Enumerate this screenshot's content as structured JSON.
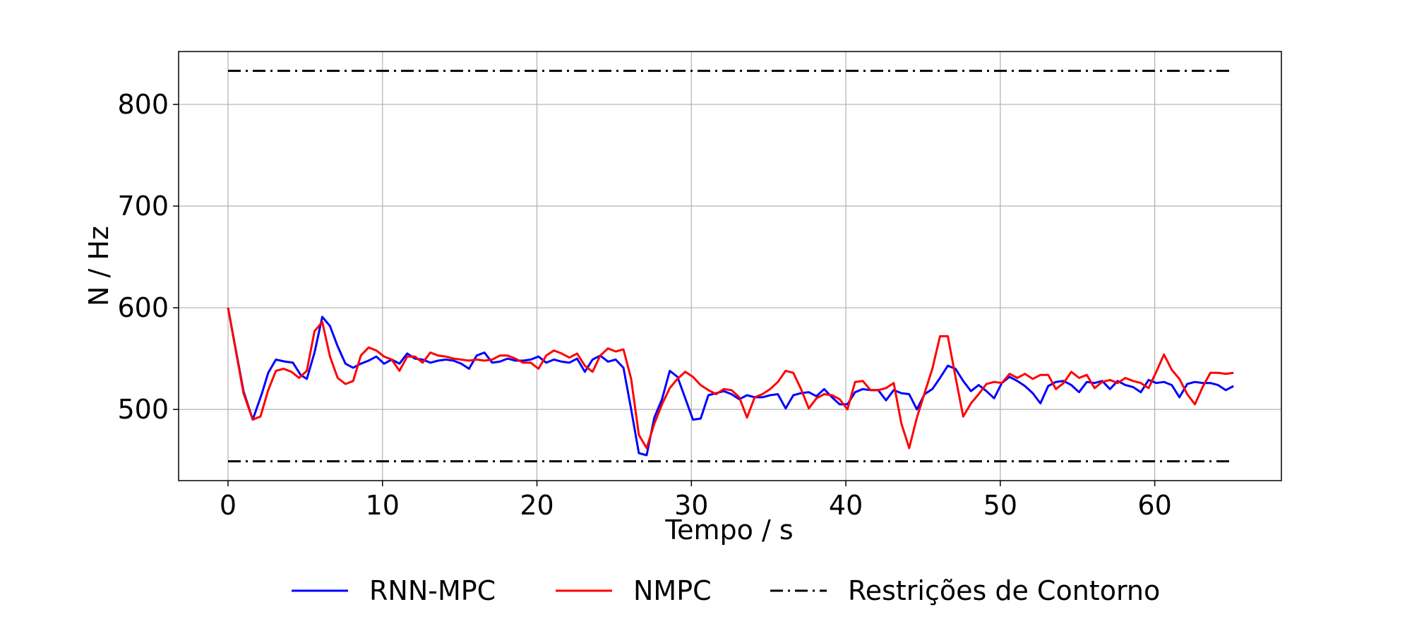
{
  "chart_data": {
    "type": "line",
    "title": "",
    "xlabel": "Tempo / s",
    "ylabel": "N / Hz",
    "xlim": [
      -3.2,
      68.2
    ],
    "ylim": [
      430,
      852
    ],
    "xticks": [
      0,
      10,
      20,
      30,
      40,
      50,
      60
    ],
    "yticks": [
      500,
      600,
      700,
      800
    ],
    "grid": true,
    "legend_position": "bottom-center, outside plot",
    "series": [
      {
        "name": "RNN-MPC",
        "color": "#0000ff",
        "style": "solid",
        "points": [
          [
            0,
            600
          ],
          [
            1,
            518
          ],
          [
            1.6,
            490
          ],
          [
            2.2,
            516
          ],
          [
            2.6,
            536
          ],
          [
            3.1,
            549
          ],
          [
            3.7,
            547
          ],
          [
            4.2,
            546
          ],
          [
            4.7,
            534
          ],
          [
            5.1,
            530
          ],
          [
            5.6,
            556
          ],
          [
            6.1,
            591
          ],
          [
            6.6,
            582
          ],
          [
            7.1,
            562
          ],
          [
            7.6,
            545
          ],
          [
            8.1,
            541
          ],
          [
            8.6,
            545
          ],
          [
            9.1,
            548
          ],
          [
            9.6,
            552
          ],
          [
            10.1,
            545
          ],
          [
            10.6,
            549
          ],
          [
            11.1,
            545
          ],
          [
            11.6,
            555
          ],
          [
            12.1,
            550
          ],
          [
            12.6,
            549
          ],
          [
            13.1,
            546
          ],
          [
            13.6,
            548
          ],
          [
            14.1,
            549
          ],
          [
            14.6,
            548
          ],
          [
            15.1,
            545
          ],
          [
            15.6,
            540
          ],
          [
            16.1,
            553
          ],
          [
            16.6,
            556
          ],
          [
            17.1,
            546
          ],
          [
            17.6,
            547
          ],
          [
            18.1,
            550
          ],
          [
            18.6,
            548
          ],
          [
            19.1,
            548
          ],
          [
            19.6,
            549
          ],
          [
            20.1,
            552
          ],
          [
            20.6,
            546
          ],
          [
            21.1,
            549
          ],
          [
            21.6,
            547
          ],
          [
            22.1,
            546
          ],
          [
            22.6,
            550
          ],
          [
            23.1,
            537
          ],
          [
            23.6,
            549
          ],
          [
            24.1,
            553
          ],
          [
            24.6,
            547
          ],
          [
            25.1,
            549
          ],
          [
            25.6,
            541
          ],
          [
            26.1,
            500
          ],
          [
            26.6,
            457
          ],
          [
            27.1,
            455
          ],
          [
            27.6,
            492
          ],
          [
            28.1,
            510
          ],
          [
            28.6,
            538
          ],
          [
            29.1,
            532
          ],
          [
            29.6,
            511
          ],
          [
            30.1,
            490
          ],
          [
            30.6,
            491
          ],
          [
            31.1,
            514
          ],
          [
            31.6,
            516
          ],
          [
            32.1,
            518
          ],
          [
            32.6,
            515
          ],
          [
            33.1,
            510
          ],
          [
            33.6,
            514
          ],
          [
            34.1,
            512
          ],
          [
            34.6,
            512
          ],
          [
            35.1,
            514
          ],
          [
            35.6,
            515
          ],
          [
            36.1,
            501
          ],
          [
            36.6,
            514
          ],
          [
            37.1,
            516
          ],
          [
            37.6,
            517
          ],
          [
            38.1,
            513
          ],
          [
            38.6,
            520
          ],
          [
            39.1,
            512
          ],
          [
            39.6,
            505
          ],
          [
            40.1,
            505
          ],
          [
            40.6,
            517
          ],
          [
            41.1,
            520
          ],
          [
            41.6,
            519
          ],
          [
            42.1,
            519
          ],
          [
            42.6,
            509
          ],
          [
            43.1,
            519
          ],
          [
            43.6,
            516
          ],
          [
            44.1,
            515
          ],
          [
            44.6,
            500
          ],
          [
            45.1,
            515
          ],
          [
            45.6,
            520
          ],
          [
            46.1,
            531
          ],
          [
            46.6,
            543
          ],
          [
            47.1,
            540
          ],
          [
            47.6,
            528
          ],
          [
            48.1,
            518
          ],
          [
            48.6,
            524
          ],
          [
            49.1,
            518
          ],
          [
            49.6,
            511
          ],
          [
            50.1,
            526
          ],
          [
            50.6,
            532
          ],
          [
            51.1,
            528
          ],
          [
            51.6,
            523
          ],
          [
            52.1,
            516
          ],
          [
            52.6,
            506
          ],
          [
            53.1,
            523
          ],
          [
            53.6,
            527
          ],
          [
            54.1,
            528
          ],
          [
            54.6,
            524
          ],
          [
            55.1,
            517
          ],
          [
            55.6,
            527
          ],
          [
            56.1,
            526
          ],
          [
            56.6,
            528
          ],
          [
            57.1,
            520
          ],
          [
            57.6,
            528
          ],
          [
            58.1,
            524
          ],
          [
            58.6,
            522
          ],
          [
            59.1,
            517
          ],
          [
            59.6,
            529
          ],
          [
            60.1,
            526
          ],
          [
            60.6,
            527
          ],
          [
            61.1,
            524
          ],
          [
            61.6,
            512
          ],
          [
            62.1,
            525
          ],
          [
            62.6,
            527
          ],
          [
            63.1,
            526
          ],
          [
            63.6,
            526
          ],
          [
            64.1,
            524
          ],
          [
            64.6,
            519
          ],
          [
            65.1,
            523
          ]
        ]
      },
      {
        "name": "NMPC",
        "color": "#ff0000",
        "style": "solid",
        "points": [
          [
            0,
            600
          ],
          [
            1,
            516
          ],
          [
            1.6,
            490
          ],
          [
            2.1,
            493
          ],
          [
            2.6,
            519
          ],
          [
            3.1,
            538
          ],
          [
            3.6,
            540
          ],
          [
            4.1,
            537
          ],
          [
            4.6,
            531
          ],
          [
            5.1,
            538
          ],
          [
            5.6,
            577
          ],
          [
            6.1,
            586
          ],
          [
            6.6,
            552
          ],
          [
            7.1,
            531
          ],
          [
            7.6,
            525
          ],
          [
            8.1,
            528
          ],
          [
            8.6,
            553
          ],
          [
            9.1,
            561
          ],
          [
            9.6,
            558
          ],
          [
            10.1,
            552
          ],
          [
            10.6,
            549
          ],
          [
            11.1,
            538
          ],
          [
            11.6,
            552
          ],
          [
            12.1,
            552
          ],
          [
            12.6,
            546
          ],
          [
            13.1,
            556
          ],
          [
            13.6,
            553
          ],
          [
            14.1,
            552
          ],
          [
            14.6,
            550
          ],
          [
            15.1,
            549
          ],
          [
            15.6,
            548
          ],
          [
            16.1,
            549
          ],
          [
            16.6,
            548
          ],
          [
            17.1,
            549
          ],
          [
            17.6,
            553
          ],
          [
            18.1,
            553
          ],
          [
            18.6,
            550
          ],
          [
            19.1,
            546
          ],
          [
            19.6,
            546
          ],
          [
            20.1,
            540
          ],
          [
            20.6,
            553
          ],
          [
            21.1,
            558
          ],
          [
            21.6,
            555
          ],
          [
            22.1,
            551
          ],
          [
            22.6,
            555
          ],
          [
            23.1,
            543
          ],
          [
            23.6,
            537
          ],
          [
            24.1,
            553
          ],
          [
            24.6,
            560
          ],
          [
            25.1,
            557
          ],
          [
            25.6,
            559
          ],
          [
            26.1,
            530
          ],
          [
            26.6,
            475
          ],
          [
            27.1,
            462
          ],
          [
            27.6,
            486
          ],
          [
            28.1,
            505
          ],
          [
            28.6,
            521
          ],
          [
            29.1,
            530
          ],
          [
            29.6,
            537
          ],
          [
            30.1,
            532
          ],
          [
            30.6,
            524
          ],
          [
            31.1,
            519
          ],
          [
            31.6,
            515
          ],
          [
            32.1,
            520
          ],
          [
            32.6,
            519
          ],
          [
            33.1,
            512
          ],
          [
            33.6,
            492
          ],
          [
            34.1,
            512
          ],
          [
            34.6,
            515
          ],
          [
            35.1,
            520
          ],
          [
            35.6,
            527
          ],
          [
            36.1,
            538
          ],
          [
            36.6,
            536
          ],
          [
            37.1,
            520
          ],
          [
            37.6,
            501
          ],
          [
            38.1,
            511
          ],
          [
            38.6,
            515
          ],
          [
            39.1,
            514
          ],
          [
            39.6,
            510
          ],
          [
            40.1,
            500
          ],
          [
            40.6,
            527
          ],
          [
            41.1,
            528
          ],
          [
            41.6,
            519
          ],
          [
            42.1,
            519
          ],
          [
            42.6,
            521
          ],
          [
            43.1,
            526
          ],
          [
            43.6,
            486
          ],
          [
            44.1,
            462
          ],
          [
            44.6,
            492
          ],
          [
            45.1,
            516
          ],
          [
            45.6,
            540
          ],
          [
            46.1,
            572
          ],
          [
            46.6,
            572
          ],
          [
            47.1,
            532
          ],
          [
            47.6,
            493
          ],
          [
            48.1,
            506
          ],
          [
            48.6,
            515
          ],
          [
            49.1,
            525
          ],
          [
            49.6,
            527
          ],
          [
            50.1,
            526
          ],
          [
            50.6,
            535
          ],
          [
            51.1,
            531
          ],
          [
            51.6,
            535
          ],
          [
            52.1,
            530
          ],
          [
            52.6,
            534
          ],
          [
            53.1,
            534
          ],
          [
            53.6,
            520
          ],
          [
            54.1,
            526
          ],
          [
            54.6,
            537
          ],
          [
            55.1,
            531
          ],
          [
            55.6,
            534
          ],
          [
            56.1,
            521
          ],
          [
            56.6,
            527
          ],
          [
            57.1,
            529
          ],
          [
            57.6,
            526
          ],
          [
            58.1,
            531
          ],
          [
            58.6,
            528
          ],
          [
            59.1,
            526
          ],
          [
            59.6,
            521
          ],
          [
            60.1,
            537
          ],
          [
            60.6,
            554
          ],
          [
            61.1,
            539
          ],
          [
            61.6,
            530
          ],
          [
            62.1,
            515
          ],
          [
            62.6,
            505
          ],
          [
            63.1,
            522
          ],
          [
            63.6,
            536
          ],
          [
            64.1,
            536
          ],
          [
            64.6,
            535
          ],
          [
            65.1,
            536
          ]
        ]
      },
      {
        "name": "Restrições de Contorno",
        "color": "#000000",
        "style": "dashdot",
        "segments": [
          [
            [
              0,
              833
            ],
            [
              65,
              833
            ]
          ],
          [
            [
              0,
              449
            ],
            [
              65,
              449
            ]
          ]
        ]
      }
    ]
  }
}
